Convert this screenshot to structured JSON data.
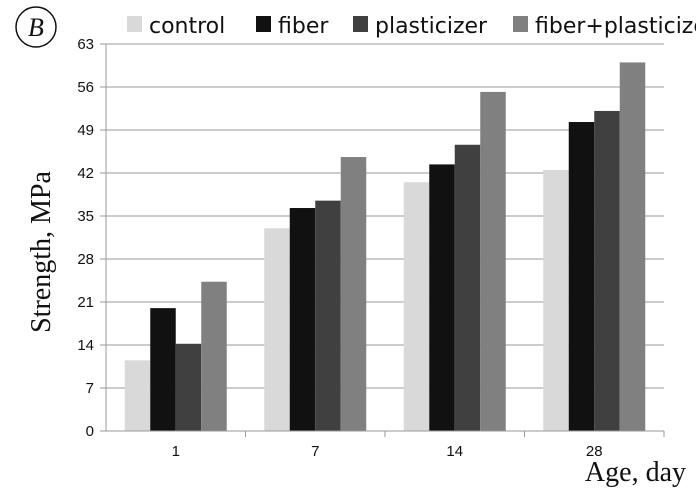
{
  "chart_data": {
    "type": "bar",
    "panel_label": "B",
    "categories": [
      "1",
      "7",
      "14",
      "28"
    ],
    "series": [
      {
        "name": "control",
        "color": "#d9d9d9",
        "values": [
          11.5,
          33.0,
          40.5,
          42.5
        ]
      },
      {
        "name": "fiber",
        "color": "#111111",
        "values": [
          20.0,
          36.3,
          43.4,
          50.3
        ]
      },
      {
        "name": "plasticizer",
        "color": "#404040",
        "values": [
          14.2,
          37.5,
          46.6,
          52.1
        ]
      },
      {
        "name": "fiber+plasticizer",
        "color": "#808080",
        "values": [
          24.3,
          44.6,
          55.2,
          60.0
        ]
      }
    ],
    "xlabel": "Age, day",
    "ylabel": "Strength, MPa",
    "ylim": [
      0,
      63
    ],
    "yticks": [
      "0",
      "7",
      "14",
      "21",
      "28",
      "35",
      "42",
      "49",
      "56",
      "63"
    ],
    "grid": true,
    "legend_position": "top"
  }
}
